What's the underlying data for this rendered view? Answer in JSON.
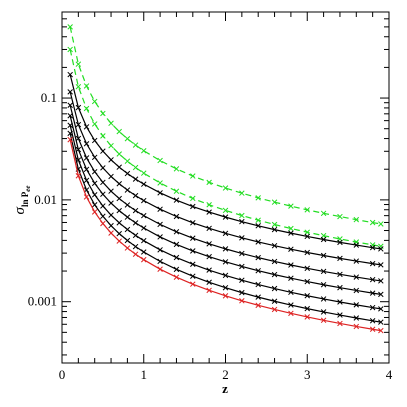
{
  "chart_data": {
    "type": "line",
    "xlabel": "z",
    "ylabel": "σ",
    "ylabel_sub": "ln P",
    "ylabel_subsub": "ee",
    "x_range": [
      0,
      4
    ],
    "y_range": [
      0.00025,
      0.7
    ],
    "y_scale": "log",
    "grid": false,
    "x_ticks": [
      {
        "value": 0,
        "label": "0"
      },
      {
        "value": 1,
        "label": "1"
      },
      {
        "value": 2,
        "label": "2"
      },
      {
        "value": 3,
        "label": "3"
      },
      {
        "value": 4,
        "label": "4"
      }
    ],
    "y_ticks": [
      {
        "value": 0.001,
        "label": "0.001"
      },
      {
        "value": 0.01,
        "label": "0.01"
      },
      {
        "value": 0.1,
        "label": "0.1"
      }
    ],
    "x": [
      0.1,
      0.2,
      0.3,
      0.4,
      0.5,
      0.6,
      0.7,
      0.8,
      0.9,
      1.0,
      1.2,
      1.4,
      1.6,
      1.8,
      2.0,
      2.2,
      2.4,
      2.6,
      2.8,
      3.0,
      3.2,
      3.4,
      3.6,
      3.8,
      3.9
    ],
    "series": [
      {
        "color": "#22dd22",
        "dash": "6,4",
        "z0": 0.5,
        "zf": 0.0058
      },
      {
        "color": "#22dd22",
        "dash": "6,4",
        "z0": 0.3,
        "zf": 0.0035
      },
      {
        "color": "#000000",
        "dash": "",
        "z0": 0.17,
        "zf": 0.0033
      },
      {
        "color": "#000000",
        "dash": "",
        "z0": 0.115,
        "zf": 0.0023
      },
      {
        "color": "#000000",
        "dash": "",
        "z0": 0.085,
        "zf": 0.0016
      },
      {
        "color": "#000000",
        "dash": "",
        "z0": 0.067,
        "zf": 0.00118
      },
      {
        "color": "#000000",
        "dash": "",
        "z0": 0.054,
        "zf": 0.00085
      },
      {
        "color": "#000000",
        "dash": "",
        "z0": 0.045,
        "zf": 0.00063
      },
      {
        "color": "#dd2222",
        "dash": "",
        "z0": 0.039,
        "zf": 0.00052
      }
    ]
  }
}
